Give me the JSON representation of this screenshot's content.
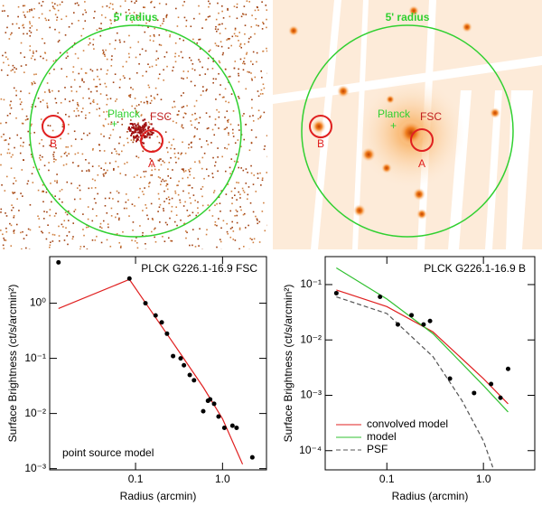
{
  "images": [
    {
      "radius_label": "5' radius",
      "planck": "Planck",
      "fsc": "FSC",
      "a": "A",
      "b": "B"
    },
    {
      "radius_label": "5' radius",
      "planck": "Planck",
      "fsc": "FSC",
      "a": "A",
      "b": "B"
    }
  ],
  "chart_data": [
    {
      "type": "scatter",
      "title": "PLCK G226.1-16.9 FSC",
      "annotation": "point source model",
      "xlabel": "Radius (arcmin)",
      "ylabel": "Surface Brightness (ct/s/arcmin²)",
      "log_x": true,
      "log_y": true,
      "color": "#000000",
      "x": [
        0.013,
        0.085,
        0.13,
        0.17,
        0.2,
        0.23,
        0.27,
        0.33,
        0.36,
        0.42,
        0.47,
        0.6,
        0.68,
        0.72,
        0.8,
        0.9,
        1.05,
        1.3,
        1.45,
        2.2
      ],
      "values": [
        5.5,
        2.8,
        1.0,
        0.6,
        0.45,
        0.28,
        0.11,
        0.1,
        0.075,
        0.05,
        0.04,
        0.011,
        0.017,
        0.018,
        0.015,
        0.0088,
        0.0055,
        0.006,
        0.0055,
        0.0016
      ],
      "model_line": {
        "color": "#e02020",
        "x": [
          0.013,
          0.085,
          0.17,
          0.3,
          0.6,
          1.0,
          1.7
        ],
        "values": [
          0.8,
          2.7,
          0.55,
          0.15,
          0.03,
          0.008,
          0.0012
        ]
      },
      "xlim": [
        0.0103,
        3.2
      ],
      "ylim": [
        0.00095,
        7
      ],
      "xticks": [
        0.1,
        {
          "value": 1,
          "label": "1.0"
        }
      ],
      "yticks": [
        {
          "value": 0.001,
          "label": "10⁻³"
        },
        {
          "value": 0.01,
          "label": "10⁻²"
        },
        {
          "value": 0.1,
          "label": "10⁻¹"
        },
        {
          "value": 1,
          "label": "10⁰"
        }
      ]
    },
    {
      "type": "scatter",
      "title": "PLCK G226.1-16.9 B",
      "xlabel": "Radius (arcmin)",
      "ylabel": "Surface Brightness (ct/s/arcmin²)",
      "log_x": true,
      "log_y": true,
      "color": "#000000",
      "legend": "lower left",
      "x": [
        0.03,
        0.085,
        0.13,
        0.18,
        0.24,
        0.28,
        0.45,
        0.8,
        1.2,
        1.5,
        1.8
      ],
      "values": [
        0.07,
        0.06,
        0.019,
        0.028,
        0.019,
        0.022,
        0.002,
        0.0011,
        0.0016,
        0.0009,
        0.003
      ],
      "series": [
        {
          "name": "convolved model",
          "color": "#e02020",
          "dash": false,
          "x": [
            0.03,
            0.1,
            0.3,
            1.0,
            1.8
          ],
          "values": [
            0.08,
            0.04,
            0.014,
            0.002,
            0.0007
          ]
        },
        {
          "name": "model",
          "color": "#30c030",
          "dash": false,
          "x": [
            0.03,
            0.1,
            0.3,
            1.0,
            1.8
          ],
          "values": [
            0.2,
            0.055,
            0.013,
            0.0015,
            0.0005
          ]
        },
        {
          "name": "PSF",
          "color": "#555555",
          "dash": true,
          "x": [
            0.03,
            0.1,
            0.3,
            0.6,
            1.0,
            1.25
          ],
          "values": [
            0.06,
            0.03,
            0.005,
            0.0008,
            0.00015,
            5e-05
          ]
        }
      ],
      "xlim": [
        0.023,
        3.4
      ],
      "ylim": [
        4.5e-05,
        0.32
      ],
      "xticks": [
        0.1,
        {
          "value": 1,
          "label": "1.0"
        }
      ],
      "yticks": [
        {
          "value": 0.0001,
          "label": "10⁻⁴"
        },
        {
          "value": 0.001,
          "label": "10⁻³"
        },
        {
          "value": 0.01,
          "label": "10⁻²"
        },
        {
          "value": 0.1,
          "label": "10⁻¹"
        }
      ]
    }
  ]
}
